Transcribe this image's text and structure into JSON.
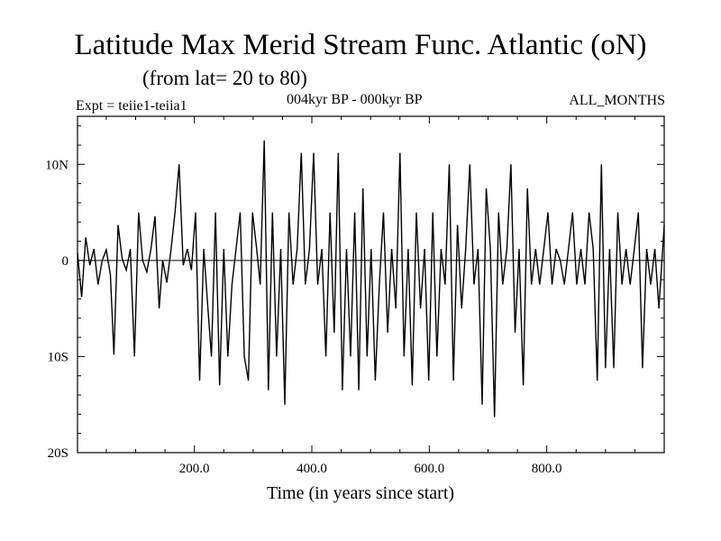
{
  "title": "Latitude Max Merid Stream Func. Atlantic (oN)",
  "subtitle": "(from lat= 20 to 80)",
  "expt_label": "Expt = teiie1-teiia1",
  "period_label": "004kyr BP - 000kyr BP",
  "months_label": "ALL_MONTHS",
  "chart_data": {
    "type": "line",
    "title": "Latitude Max Merid Stream Func. Atlantic (oN)",
    "subtitle": "(from lat= 20 to 80)",
    "xlabel": "Time (in years since start)",
    "ylabel": "",
    "xlim": [
      1,
      1000
    ],
    "ylim": [
      -20,
      15
    ],
    "x_ticks": [
      200,
      400,
      600,
      800
    ],
    "x_tick_labels": [
      "200.0",
      "400.0",
      "600.0",
      "800.0"
    ],
    "y_ticks": [
      10,
      0,
      -10,
      -20
    ],
    "y_tick_labels": [
      "10N",
      "0",
      "10S",
      "20S"
    ],
    "grid": false,
    "legend": "none",
    "line_color": "#000000",
    "series": [
      {
        "x": [
          1,
          8,
          15,
          22,
          29,
          36,
          43,
          50,
          57,
          63,
          70,
          77,
          84,
          91,
          98,
          105,
          112,
          119,
          126,
          133,
          140,
          146,
          153,
          160,
          167,
          174,
          181,
          188,
          195,
          202,
          209,
          216,
          223,
          229,
          236,
          243,
          250,
          257,
          264,
          271,
          278,
          285,
          292,
          299,
          306,
          312,
          319,
          326,
          333,
          340,
          347,
          354,
          361,
          368,
          375,
          382,
          389,
          396,
          403,
          410,
          417,
          424,
          431,
          438,
          445,
          452,
          459,
          466,
          473,
          480,
          487,
          494,
          501,
          508,
          515,
          522,
          529,
          536,
          543,
          550,
          557,
          564,
          571,
          578,
          585,
          592,
          599,
          606,
          613,
          620,
          627,
          634,
          641,
          648,
          655,
          662,
          669,
          676,
          683,
          690,
          697,
          704,
          711,
          718,
          725,
          732,
          739,
          746,
          753,
          760,
          767,
          774,
          781,
          788,
          795,
          802,
          809,
          816,
          823,
          830,
          837,
          844,
          851,
          858,
          865,
          872,
          879,
          886,
          893,
          900,
          907,
          914,
          921,
          928,
          935,
          942,
          949,
          956,
          963,
          970,
          977,
          984,
          991,
          1000
        ],
        "values": [
          0.8,
          -3.8,
          2.4,
          -0.5,
          1.2,
          -2.5,
          0.0,
          1.1,
          -1.5,
          -9.8,
          3.7,
          0.2,
          -1.0,
          1.2,
          -10.0,
          5.0,
          0.0,
          -1.2,
          1.2,
          4.6,
          -5.0,
          0.0,
          -2.3,
          1.0,
          5.0,
          10.0,
          -0.5,
          1.2,
          -1.0,
          5.0,
          -12.5,
          1.2,
          -5.0,
          -10.0,
          5.0,
          -13.0,
          1.2,
          -10.0,
          -2.5,
          1.2,
          5.0,
          -10.0,
          -12.5,
          5.0,
          1.2,
          -2.5,
          12.5,
          -13.5,
          5.0,
          -10.0,
          1.2,
          -15.0,
          5.0,
          -2.5,
          1.2,
          11.2,
          -2.5,
          1.2,
          11.2,
          -2.5,
          1.2,
          -10.0,
          5.0,
          -7.5,
          11.2,
          -13.5,
          1.2,
          -10.0,
          5.0,
          -13.5,
          7.5,
          -10.0,
          1.2,
          -12.5,
          -2.5,
          5.0,
          -7.5,
          1.2,
          -5.0,
          11.2,
          -10.0,
          1.2,
          -13.0,
          5.0,
          -5.0,
          1.2,
          -12.5,
          5.0,
          -10.0,
          1.2,
          -2.5,
          10.0,
          -12.5,
          3.7,
          -5.0,
          1.2,
          10.0,
          -2.5,
          1.2,
          -15.0,
          7.5,
          1.2,
          -16.3,
          5.0,
          -2.5,
          1.2,
          10.0,
          -7.5,
          1.2,
          -13.0,
          7.5,
          -2.5,
          1.2,
          -2.5,
          1.2,
          5.0,
          -2.5,
          1.2,
          0.0,
          -2.5,
          1.2,
          5.0,
          -2.5,
          1.2,
          -2.5,
          5.0,
          1.2,
          -12.5,
          10.0,
          -11.2,
          1.2,
          -11.2,
          5.0,
          -2.5,
          1.2,
          -2.5,
          1.2,
          5.0,
          -11.2,
          1.2,
          -2.5,
          1.2,
          -5.0,
          3.7
        ]
      }
    ]
  }
}
